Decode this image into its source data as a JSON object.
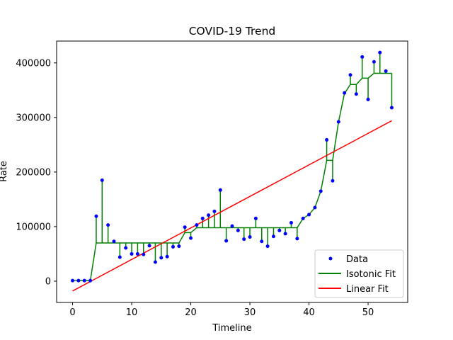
{
  "chart_data": {
    "type": "line",
    "title": "COVID-19 Trend",
    "xlabel": "Timeline",
    "ylabel": "Rate",
    "xlim": [
      -2.7,
      56.7
    ],
    "ylim": [
      -39000,
      440000
    ],
    "xticks": [
      0,
      10,
      20,
      30,
      40,
      50
    ],
    "yticks": [
      0,
      100000,
      200000,
      300000,
      400000
    ],
    "grid": false,
    "legend_position": "lower right",
    "series": [
      {
        "name": "Data",
        "kind": "scatter",
        "color": "#0000ff",
        "x": [
          0,
          1,
          2,
          3,
          4,
          5,
          6,
          7,
          8,
          9,
          10,
          11,
          12,
          13,
          14,
          15,
          16,
          17,
          18,
          19,
          20,
          21,
          22,
          23,
          24,
          25,
          26,
          27,
          28,
          29,
          30,
          31,
          32,
          33,
          34,
          35,
          36,
          37,
          38,
          39,
          40,
          41,
          42,
          43,
          44,
          45,
          46,
          47,
          48,
          49,
          50,
          51,
          52,
          53,
          54
        ],
        "y": [
          1000,
          1000,
          1000,
          1000,
          119000,
          185000,
          103000,
          73000,
          44000,
          61000,
          50000,
          50000,
          49000,
          65000,
          35000,
          43000,
          45000,
          63000,
          64000,
          99000,
          79000,
          103000,
          115000,
          121000,
          128000,
          167000,
          74000,
          101000,
          93000,
          77000,
          81000,
          115000,
          73000,
          64000,
          82000,
          93000,
          87000,
          107000,
          78000,
          115000,
          122000,
          135000,
          165000,
          259000,
          184000,
          292000,
          345000,
          378000,
          343000,
          411000,
          333000,
          402000,
          419000,
          385000,
          318000
        ]
      },
      {
        "name": "Isotonic Fit",
        "kind": "line",
        "color": "#008000",
        "x": [
          0,
          1,
          2,
          3,
          4,
          5,
          6,
          7,
          8,
          9,
          10,
          11,
          12,
          13,
          14,
          15,
          16,
          17,
          18,
          19,
          20,
          21,
          22,
          23,
          24,
          25,
          26,
          27,
          28,
          29,
          30,
          31,
          32,
          33,
          34,
          35,
          36,
          37,
          38,
          39,
          40,
          41,
          42,
          43,
          44,
          45,
          46,
          47,
          48,
          49,
          50,
          51,
          52,
          53,
          54
        ],
        "y": [
          1000,
          1000,
          1000,
          1000,
          70000,
          70000,
          70000,
          70000,
          70000,
          70000,
          70000,
          70000,
          70000,
          70000,
          70000,
          70000,
          70000,
          70000,
          70000,
          89000,
          89000,
          98000,
          98000,
          98000,
          98000,
          98000,
          98000,
          98000,
          98000,
          98000,
          98000,
          98000,
          98000,
          98000,
          98000,
          98000,
          98000,
          98000,
          98000,
          115000,
          122000,
          135000,
          165000,
          221500,
          221500,
          292000,
          344000,
          360500,
          360500,
          372000,
          372000,
          381000,
          381000,
          381000,
          381000
        ]
      },
      {
        "name": "Linear Fit",
        "kind": "line",
        "color": "#ff0000",
        "x": [
          0,
          54
        ],
        "y": [
          -18000,
          294000
        ]
      }
    ]
  }
}
